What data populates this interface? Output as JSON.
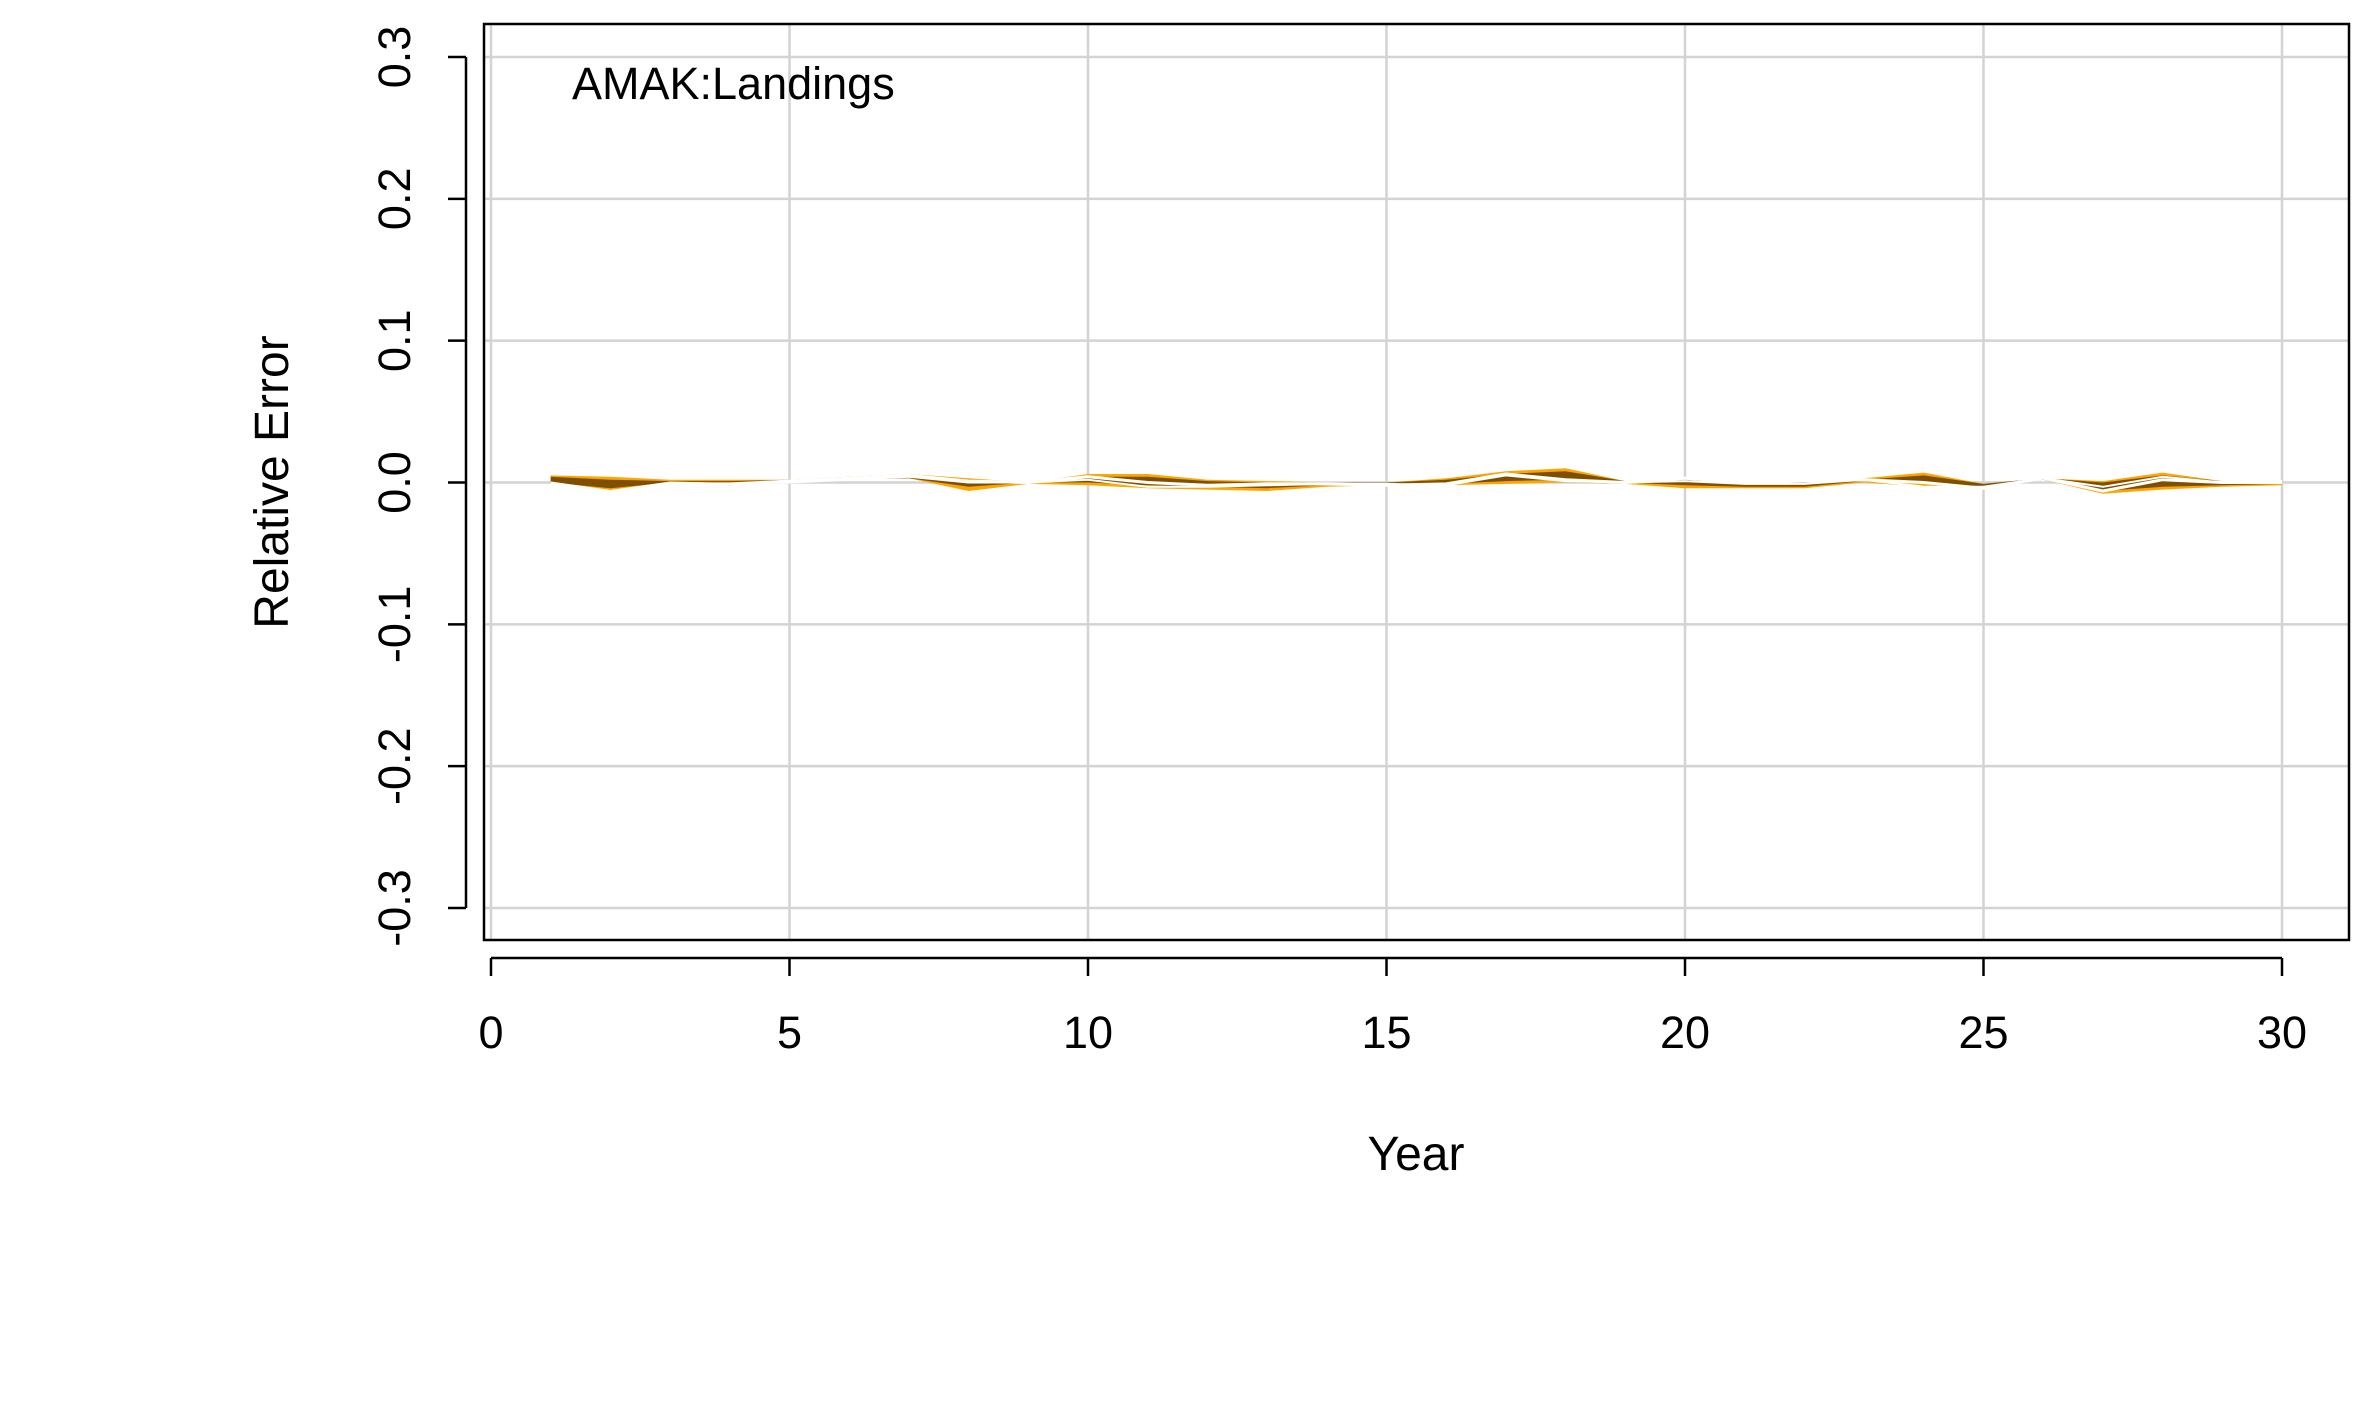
{
  "chart_data": {
    "type": "area",
    "annotation": "AMAK:Landings",
    "xlabel": "Year",
    "ylabel": "Relative Error",
    "xlim": [
      0,
      30
    ],
    "ylim": [
      -0.3,
      0.3
    ],
    "xticks": [
      0,
      5,
      10,
      15,
      20,
      25,
      30
    ],
    "yticks": [
      -0.3,
      -0.2,
      -0.1,
      0.0,
      0.1,
      0.2,
      0.3
    ],
    "xtick_labels": [
      "0",
      "5",
      "10",
      "15",
      "20",
      "25",
      "30"
    ],
    "ytick_labels": [
      "-0.3",
      "-0.2",
      "-0.1",
      "0.0",
      "0.1",
      "0.2",
      "0.3"
    ],
    "grid": true,
    "x": [
      1,
      2,
      3,
      4,
      5,
      6,
      7,
      8,
      9,
      10,
      11,
      12,
      13,
      14,
      15,
      16,
      17,
      18,
      19,
      20,
      21,
      22,
      23,
      24,
      25,
      26,
      27,
      28,
      29,
      30
    ],
    "bands": [
      {
        "role": "outer interval",
        "color": "#FFA500",
        "lower": [
          -0.001,
          -0.006,
          -0.001,
          -0.002,
          0.0,
          0.002,
          0.003,
          -0.006,
          -0.001,
          -0.002,
          -0.004,
          -0.005,
          -0.006,
          -0.003,
          -0.002,
          -0.002,
          -0.001,
          0.0,
          -0.001,
          -0.004,
          -0.004,
          -0.004,
          0.0,
          -0.003,
          -0.004,
          0.002,
          -0.008,
          -0.005,
          -0.003,
          -0.002
        ],
        "upper": [
          0.005,
          0.004,
          0.002,
          0.002,
          0.002,
          0.004,
          0.006,
          0.003,
          0.0,
          0.006,
          0.006,
          0.002,
          0.001,
          0.0,
          0.0,
          0.003,
          0.008,
          0.01,
          0.001,
          0.003,
          0.0,
          0.001,
          0.003,
          0.007,
          -0.001,
          0.003,
          0.001,
          0.007,
          0.001,
          0.001
        ]
      },
      {
        "role": "inner interval",
        "color": "#7F4F00",
        "lower": [
          0.0,
          -0.004,
          0.0,
          -0.001,
          0.0,
          0.002,
          0.003,
          -0.003,
          0.0,
          0.0,
          -0.002,
          -0.003,
          -0.004,
          -0.002,
          -0.001,
          -0.001,
          0.001,
          0.002,
          0.0,
          -0.002,
          -0.003,
          -0.003,
          0.001,
          -0.001,
          -0.003,
          0.002,
          -0.006,
          -0.003,
          -0.002,
          -0.001
        ],
        "upper": [
          0.004,
          0.002,
          0.001,
          0.001,
          0.002,
          0.003,
          0.005,
          0.002,
          0.0,
          0.004,
          0.004,
          0.001,
          0.0,
          0.0,
          0.0,
          0.002,
          0.006,
          0.008,
          0.001,
          0.002,
          0.0,
          0.0,
          0.002,
          0.005,
          -0.001,
          0.003,
          0.0,
          0.005,
          0.001,
          0.001
        ]
      }
    ],
    "series": [
      {
        "role": "median",
        "color": "#FFFFFF",
        "values": [
          -0.001,
          -0.008,
          -0.001,
          -0.001,
          0.001,
          0.003,
          0.005,
          0.001,
          0.0,
          0.004,
          0.0,
          -0.002,
          -0.001,
          -0.001,
          -0.002,
          -0.001,
          0.006,
          0.002,
          0.0,
          0.003,
          0.0,
          0.001,
          0.002,
          0.0,
          -0.004,
          0.003,
          -0.006,
          0.002,
          0.0,
          0.0
        ]
      },
      {
        "role": "individual run",
        "color": "#FFFFFF",
        "values": [
          0.0,
          -0.006,
          0.0,
          -0.001,
          0.0,
          0.002,
          0.004,
          0.0,
          0.0,
          0.002,
          -0.003,
          -0.003,
          -0.002,
          -0.001,
          -0.001,
          -0.002,
          0.005,
          0.001,
          0.0,
          0.001,
          -0.001,
          -0.001,
          0.002,
          -0.003,
          -0.003,
          0.003,
          -0.003,
          0.004,
          0.0,
          0.001
        ]
      }
    ]
  }
}
